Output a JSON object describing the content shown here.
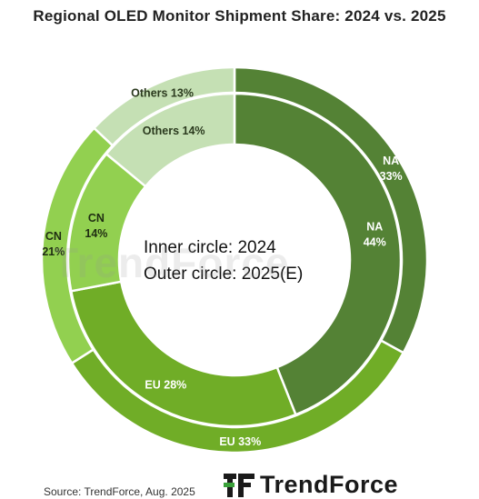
{
  "title": "Regional OLED Monitor Shipment Share: 2024 vs. 2025",
  "chart_data": {
    "type": "pie",
    "rings": [
      {
        "ring": "inner",
        "name": "2024",
        "slices": [
          {
            "label": "NA",
            "value": 44,
            "value_label": "44%",
            "color": "#548235"
          },
          {
            "label": "EU",
            "value": 28,
            "value_label": "28%",
            "color": "#70ad27"
          },
          {
            "label": "CN",
            "value": 14,
            "value_label": "14%",
            "color": "#92d050"
          },
          {
            "label": "Others",
            "value": 14,
            "value_label": "14%",
            "color": "#c5e0b4"
          }
        ]
      },
      {
        "ring": "outer",
        "name": "2025(E)",
        "slices": [
          {
            "label": "NA",
            "value": 33,
            "value_label": "33%",
            "color": "#548235"
          },
          {
            "label": "EU",
            "value": 33,
            "value_label": "33%",
            "color": "#70ad27"
          },
          {
            "label": "CN",
            "value": 21,
            "value_label": "21%",
            "color": "#92d050"
          },
          {
            "label": "Others",
            "value": 13,
            "value_label": "13%",
            "color": "#c5e0b4"
          }
        ]
      }
    ],
    "center_text": [
      "Inner circle: 2024",
      "Outer circle: 2025(E)"
    ]
  },
  "footer": {
    "source": "Source: TrendForce, Aug. 2025",
    "brand": "TrendForce",
    "watermark": "TrendForce"
  }
}
